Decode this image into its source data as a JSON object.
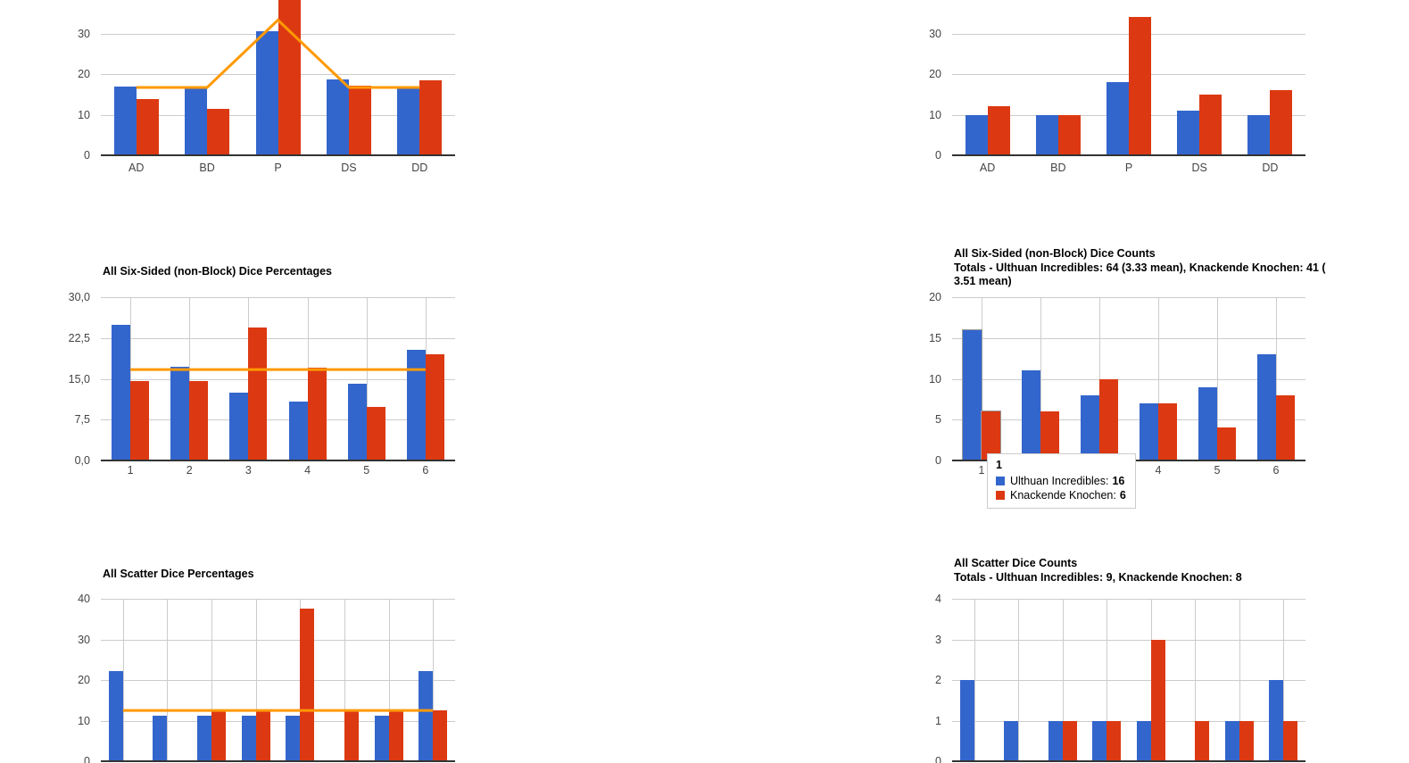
{
  "palette": {
    "blue": "#3366CC",
    "red": "#DC3912",
    "orange": "#FF9900",
    "gridline": "#CCCCCC",
    "axis_line": "#333333",
    "tick_text": "#444444",
    "title_text": "#000000"
  },
  "tooltip": {
    "header": "1",
    "rows": [
      {
        "label": "Ulthuan Incredibles:",
        "value": "16",
        "color": "#3366CC"
      },
      {
        "label": "Knackende Knochen:",
        "value": "6",
        "color": "#DC3912"
      }
    ]
  },
  "chart_data": [
    {
      "type": "bar",
      "title_lines": [],
      "categories": [
        "AD",
        "BD",
        "P",
        "DS",
        "DD"
      ],
      "series": [
        {
          "name": "Ulthuan Incredibles",
          "color_key": "blue",
          "values": [
            16.9,
            16.9,
            30.5,
            18.6,
            16.9
          ]
        },
        {
          "name": "Knackende Knochen",
          "color_key": "red",
          "values": [
            13.8,
            11.5,
            39.1,
            17.2,
            18.4
          ]
        }
      ],
      "trend_line": [
        16.7,
        16.7,
        33.3,
        16.7,
        16.7
      ],
      "y_ticks": [
        {
          "label": "0",
          "value": 0
        },
        {
          "label": "10",
          "value": 10
        },
        {
          "label": "20",
          "value": 20
        },
        {
          "label": "30",
          "value": 30
        }
      ],
      "ylim": [
        0,
        40
      ],
      "xlabel": "",
      "ylabel": ""
    },
    {
      "type": "bar",
      "title_lines": [],
      "categories": [
        "AD",
        "BD",
        "P",
        "DS",
        "DD"
      ],
      "series": [
        {
          "name": "Ulthuan Incredibles",
          "color_key": "blue",
          "values": [
            10,
            10,
            18,
            11,
            10
          ]
        },
        {
          "name": "Knackende Knochen",
          "color_key": "red",
          "values": [
            12,
            10,
            34,
            15,
            16
          ]
        }
      ],
      "trend_line": null,
      "y_ticks": [
        {
          "label": "0",
          "value": 0
        },
        {
          "label": "10",
          "value": 10
        },
        {
          "label": "20",
          "value": 20
        },
        {
          "label": "30",
          "value": 30
        }
      ],
      "ylim": [
        0,
        40
      ],
      "xlabel": "",
      "ylabel": ""
    },
    {
      "type": "bar",
      "title_lines": [
        "All Six-Sided (non-Block) Dice Percentages"
      ],
      "categories": [
        "1",
        "2",
        "3",
        "4",
        "5",
        "6"
      ],
      "series": [
        {
          "name": "Ulthuan Incredibles",
          "color_key": "blue",
          "values": [
            25.0,
            17.2,
            12.5,
            10.9,
            14.1,
            20.3
          ]
        },
        {
          "name": "Knackende Knochen",
          "color_key": "red",
          "values": [
            14.6,
            14.6,
            24.4,
            17.1,
            9.8,
            19.5
          ]
        }
      ],
      "trend_line": [
        16.7,
        16.7,
        16.7,
        16.7,
        16.7,
        16.7
      ],
      "y_ticks": [
        {
          "label": "0,0",
          "value": 0
        },
        {
          "label": "7,5",
          "value": 7.5
        },
        {
          "label": "15,0",
          "value": 15
        },
        {
          "label": "22,5",
          "value": 22.5
        },
        {
          "label": "30,0",
          "value": 30
        }
      ],
      "ylim": [
        0,
        30
      ],
      "xlabel": "",
      "ylabel": ""
    },
    {
      "type": "bar",
      "title_lines": [
        "All Six-Sided (non-Block) Dice Counts",
        "Totals - Ulthuan Incredibles: 64 (3.33 mean), Knackende Knochen: 41 (",
        "3.51 mean)"
      ],
      "categories": [
        "1",
        "2",
        "3",
        "4",
        "5",
        "6"
      ],
      "series": [
        {
          "name": "Ulthuan Incredibles",
          "color_key": "blue",
          "values": [
            16,
            11,
            8,
            7,
            9,
            13
          ]
        },
        {
          "name": "Knackende Knochen",
          "color_key": "red",
          "values": [
            6,
            6,
            10,
            7,
            4,
            8
          ]
        }
      ],
      "trend_line": null,
      "y_ticks": [
        {
          "label": "0",
          "value": 0
        },
        {
          "label": "5",
          "value": 5
        },
        {
          "label": "10",
          "value": 10
        },
        {
          "label": "15",
          "value": 15
        },
        {
          "label": "20",
          "value": 20
        }
      ],
      "ylim": [
        0,
        20
      ],
      "xlabel": "",
      "ylabel": ""
    },
    {
      "type": "bar",
      "title_lines": [
        "All Scatter Dice Percentages"
      ],
      "categories": [
        "",
        "",
        "",
        "",
        "",
        "",
        "",
        ""
      ],
      "series": [
        {
          "name": "Ulthuan Incredibles",
          "color_key": "blue",
          "values": [
            22.2,
            11.1,
            11.1,
            11.1,
            11.1,
            0,
            11.1,
            22.2
          ]
        },
        {
          "name": "Knackende Knochen",
          "color_key": "red",
          "values": [
            0,
            0,
            12.5,
            12.5,
            37.5,
            12.5,
            12.5,
            12.5
          ]
        }
      ],
      "trend_line": [
        12.5,
        12.5,
        12.5,
        12.5,
        12.5,
        12.5,
        12.5,
        12.5
      ],
      "y_ticks": [
        {
          "label": "0",
          "value": 0
        },
        {
          "label": "10",
          "value": 10
        },
        {
          "label": "20",
          "value": 20
        },
        {
          "label": "30",
          "value": 30
        },
        {
          "label": "40",
          "value": 40
        }
      ],
      "ylim": [
        0,
        40
      ],
      "xlabel": "",
      "ylabel": ""
    },
    {
      "type": "bar",
      "title_lines": [
        "All Scatter Dice Counts",
        "Totals - Ulthuan Incredibles: 9, Knackende Knochen: 8"
      ],
      "categories": [
        "",
        "",
        "",
        "",
        "",
        "",
        "",
        ""
      ],
      "series": [
        {
          "name": "Ulthuan Incredibles",
          "color_key": "blue",
          "values": [
            2,
            1,
            1,
            1,
            1,
            0,
            1,
            2
          ]
        },
        {
          "name": "Knackende Knochen",
          "color_key": "red",
          "values": [
            0,
            0,
            1,
            1,
            3,
            1,
            1,
            1
          ]
        }
      ],
      "trend_line": null,
      "y_ticks": [
        {
          "label": "0",
          "value": 0
        },
        {
          "label": "1",
          "value": 1
        },
        {
          "label": "2",
          "value": 2
        },
        {
          "label": "3",
          "value": 3
        },
        {
          "label": "4",
          "value": 4
        }
      ],
      "ylim": [
        0,
        4
      ],
      "xlabel": "",
      "ylabel": ""
    }
  ]
}
